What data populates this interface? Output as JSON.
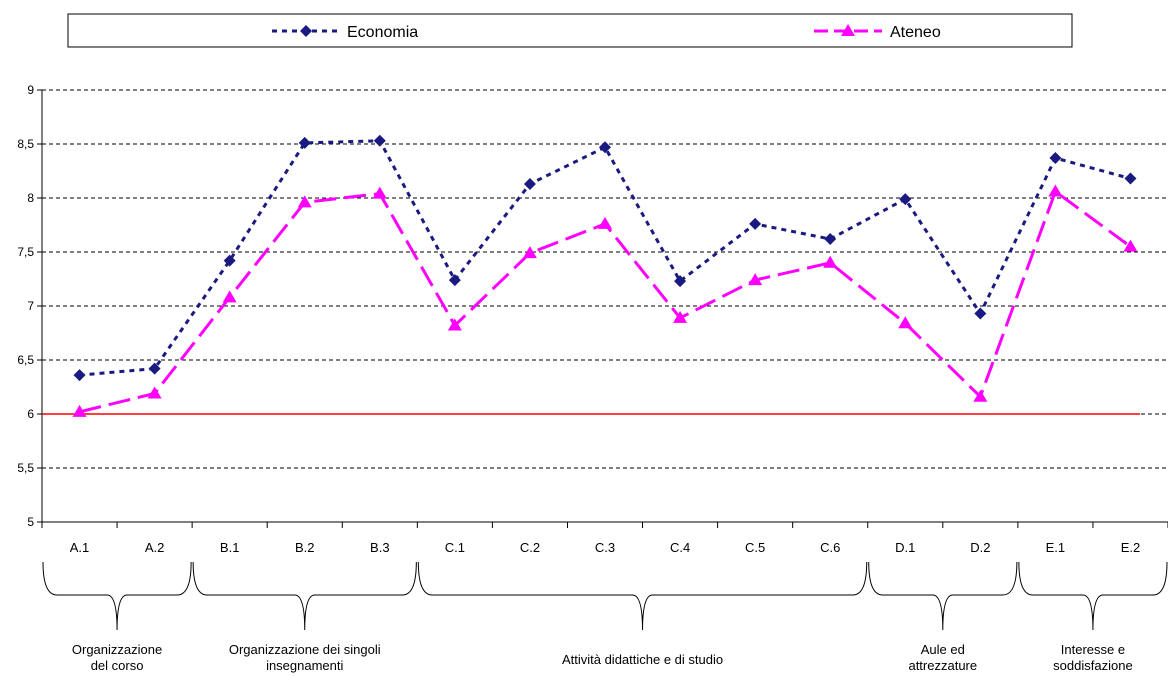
{
  "chart_data": {
    "type": "line",
    "categories": [
      "A.1",
      "A.2",
      "B.1",
      "B.2",
      "B.3",
      "C.1",
      "C.2",
      "C.3",
      "C.4",
      "C.5",
      "C.6",
      "D.1",
      "D.2",
      "E.1",
      "E.2"
    ],
    "series": [
      {
        "name": "Economia",
        "color": "#1a1a80",
        "line_style": "dotted",
        "marker": "diamond",
        "values": [
          6.36,
          6.42,
          7.42,
          8.51,
          8.53,
          7.24,
          8.13,
          8.47,
          7.23,
          7.76,
          7.62,
          7.99,
          6.93,
          8.37,
          8.18
        ]
      },
      {
        "name": "Ateneo",
        "color": "#ff00ff",
        "line_style": "dashed",
        "marker": "triangle",
        "values": [
          6.02,
          6.19,
          7.08,
          7.96,
          8.04,
          6.82,
          7.49,
          7.76,
          6.89,
          7.24,
          7.4,
          6.84,
          6.16,
          8.06,
          7.55
        ]
      }
    ],
    "reference_line": {
      "value": 6,
      "color": "#ff0000"
    },
    "ylim": [
      5,
      9
    ],
    "y_ticks": [
      5,
      5.5,
      6,
      6.5,
      7,
      7.5,
      8,
      8.5,
      9
    ],
    "y_tick_labels": [
      "5",
      "5,5",
      "6",
      "6,5",
      "7",
      "7,5",
      "8",
      "8,5",
      "9"
    ],
    "grid": "horizontal dashed",
    "legend_position": "top",
    "groups": [
      {
        "label_lines": [
          "Organizzazione",
          "del corso"
        ],
        "from": 0,
        "to": 1
      },
      {
        "label_lines": [
          "Organizzazione dei singoli",
          "insegnamenti"
        ],
        "from": 2,
        "to": 4
      },
      {
        "label_lines": [
          "Attività didattiche e di studio"
        ],
        "from": 5,
        "to": 10
      },
      {
        "label_lines": [
          "Aule ed",
          "attrezzature"
        ],
        "from": 11,
        "to": 12
      },
      {
        "label_lines": [
          "Interesse e",
          "soddisfazione"
        ],
        "from": 13,
        "to": 14
      }
    ],
    "title": "",
    "xlabel": "",
    "ylabel": ""
  }
}
